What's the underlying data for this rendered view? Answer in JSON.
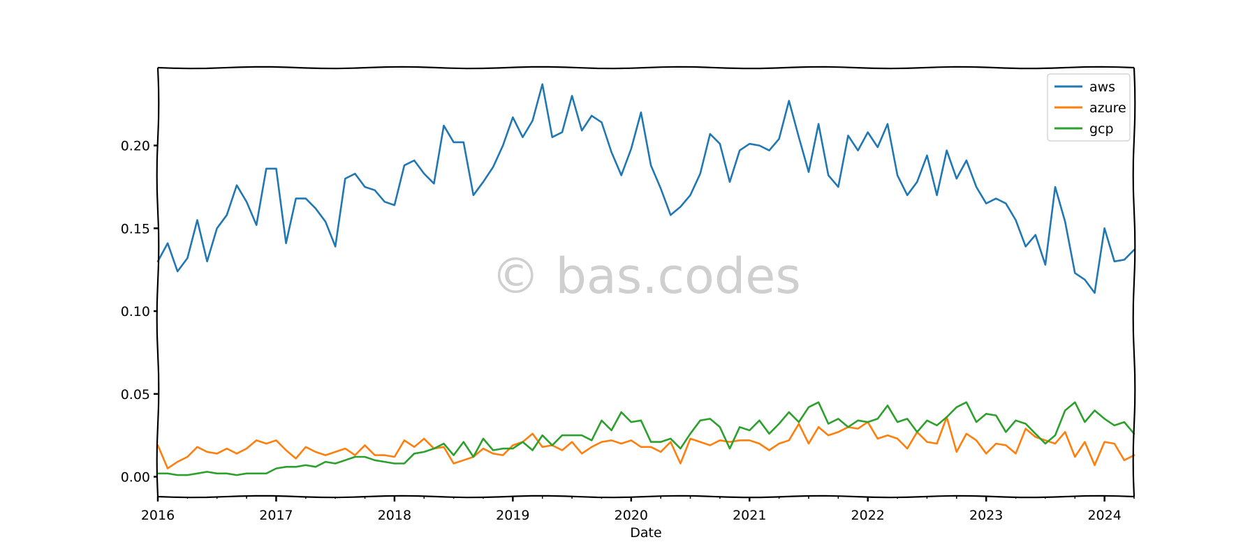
{
  "chart_data": {
    "type": "line",
    "title": "",
    "xlabel": "Date",
    "ylabel": "",
    "xlim": [
      2016.0,
      2024.25
    ],
    "ylim": [
      -0.012,
      0.247
    ],
    "xticks": [
      2016,
      2017,
      2018,
      2019,
      2020,
      2021,
      2022,
      2023,
      2024
    ],
    "xtick_labels": [
      "2016",
      "2017",
      "2018",
      "2019",
      "2020",
      "2021",
      "2022",
      "2023",
      "2024"
    ],
    "yticks": [
      0.0,
      0.05,
      0.1,
      0.15,
      0.2
    ],
    "ytick_labels": [
      "0.00",
      "0.05",
      "0.10",
      "0.15",
      "0.20"
    ],
    "grid": false,
    "legend_position": "top-right",
    "watermark": "© bas.codes",
    "x_start": "2016-01",
    "x_step": "1 month",
    "series": [
      {
        "name": "aws",
        "color": "#1f77b4",
        "values": [
          0.13,
          0.141,
          0.124,
          0.132,
          0.155,
          0.13,
          0.15,
          0.158,
          0.176,
          0.166,
          0.152,
          0.186,
          0.186,
          0.141,
          0.168,
          0.168,
          0.162,
          0.154,
          0.139,
          0.18,
          0.183,
          0.175,
          0.173,
          0.166,
          0.164,
          0.188,
          0.191,
          0.183,
          0.177,
          0.212,
          0.202,
          0.202,
          0.17,
          0.178,
          0.187,
          0.2,
          0.217,
          0.205,
          0.215,
          0.237,
          0.205,
          0.208,
          0.23,
          0.209,
          0.218,
          0.214,
          0.196,
          0.182,
          0.198,
          0.22,
          0.188,
          0.174,
          0.158,
          0.163,
          0.17,
          0.183,
          0.207,
          0.201,
          0.178,
          0.197,
          0.201,
          0.2,
          0.197,
          0.204,
          0.227,
          0.205,
          0.184,
          0.213,
          0.182,
          0.175,
          0.206,
          0.197,
          0.208,
          0.199,
          0.213,
          0.182,
          0.17,
          0.178,
          0.194,
          0.17,
          0.197,
          0.18,
          0.191,
          0.175,
          0.165,
          0.168,
          0.165,
          0.155,
          0.139,
          0.146,
          0.128,
          0.175,
          0.154,
          0.123,
          0.119,
          0.111,
          0.15,
          0.13,
          0.131,
          0.137
        ]
      },
      {
        "name": "azure",
        "color": "#ff7f0e",
        "values": [
          0.019,
          0.005,
          0.009,
          0.012,
          0.018,
          0.015,
          0.014,
          0.017,
          0.014,
          0.017,
          0.022,
          0.02,
          0.022,
          0.016,
          0.011,
          0.018,
          0.015,
          0.013,
          0.015,
          0.017,
          0.013,
          0.019,
          0.013,
          0.013,
          0.012,
          0.022,
          0.018,
          0.023,
          0.017,
          0.018,
          0.008,
          0.01,
          0.012,
          0.017,
          0.014,
          0.013,
          0.019,
          0.021,
          0.026,
          0.018,
          0.019,
          0.016,
          0.021,
          0.014,
          0.018,
          0.021,
          0.022,
          0.02,
          0.022,
          0.018,
          0.018,
          0.015,
          0.021,
          0.008,
          0.023,
          0.021,
          0.019,
          0.022,
          0.021,
          0.022,
          0.022,
          0.02,
          0.016,
          0.02,
          0.022,
          0.032,
          0.02,
          0.03,
          0.025,
          0.027,
          0.03,
          0.029,
          0.033,
          0.023,
          0.025,
          0.023,
          0.017,
          0.027,
          0.021,
          0.02,
          0.036,
          0.015,
          0.026,
          0.022,
          0.014,
          0.02,
          0.019,
          0.014,
          0.029,
          0.024,
          0.022,
          0.02,
          0.027,
          0.012,
          0.021,
          0.007,
          0.021,
          0.02,
          0.01,
          0.013
        ]
      },
      {
        "name": "gcp",
        "color": "#2ca02c",
        "values": [
          0.002,
          0.002,
          0.001,
          0.001,
          0.002,
          0.003,
          0.002,
          0.002,
          0.001,
          0.002,
          0.002,
          0.002,
          0.005,
          0.006,
          0.006,
          0.007,
          0.006,
          0.009,
          0.008,
          0.01,
          0.012,
          0.012,
          0.01,
          0.009,
          0.008,
          0.008,
          0.014,
          0.015,
          0.017,
          0.02,
          0.013,
          0.021,
          0.012,
          0.023,
          0.016,
          0.017,
          0.017,
          0.021,
          0.016,
          0.025,
          0.019,
          0.025,
          0.025,
          0.025,
          0.022,
          0.034,
          0.028,
          0.039,
          0.033,
          0.034,
          0.021,
          0.021,
          0.023,
          0.017,
          0.026,
          0.034,
          0.035,
          0.03,
          0.017,
          0.03,
          0.028,
          0.034,
          0.026,
          0.032,
          0.039,
          0.033,
          0.042,
          0.045,
          0.032,
          0.035,
          0.03,
          0.034,
          0.033,
          0.035,
          0.043,
          0.033,
          0.035,
          0.027,
          0.034,
          0.031,
          0.036,
          0.042,
          0.045,
          0.033,
          0.038,
          0.037,
          0.027,
          0.034,
          0.032,
          0.026,
          0.02,
          0.025,
          0.04,
          0.045,
          0.033,
          0.04,
          0.035,
          0.031,
          0.033,
          0.026
        ]
      }
    ]
  }
}
